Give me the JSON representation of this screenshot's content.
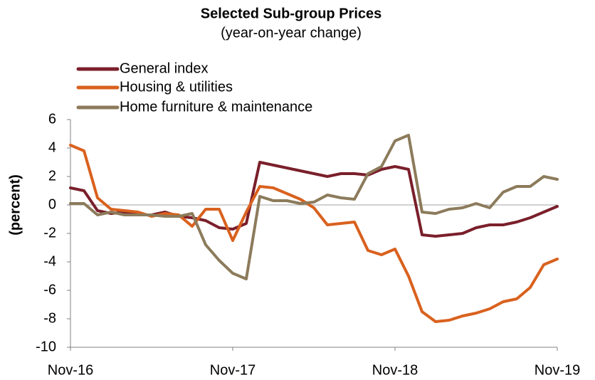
{
  "chart_data": {
    "type": "line",
    "title": "Selected Sub-group Prices",
    "subtitle": "(year-on-year change)",
    "y_label": "(percent)",
    "categories": [
      "Nov-16",
      null,
      null,
      null,
      null,
      null,
      null,
      null,
      null,
      null,
      null,
      null,
      "Nov-17",
      null,
      null,
      null,
      null,
      null,
      null,
      null,
      null,
      null,
      null,
      null,
      "Nov-18",
      null,
      null,
      null,
      null,
      null,
      null,
      null,
      null,
      null,
      null,
      null,
      "Nov-19"
    ],
    "series": [
      {
        "name": "General index",
        "color": "#7a1f2b",
        "values": [
          1.2,
          1.0,
          -0.4,
          -0.6,
          -0.5,
          -0.7,
          -0.7,
          -0.5,
          -0.8,
          -0.9,
          -1.1,
          -1.6,
          -1.7,
          -1.3,
          3.0,
          2.8,
          2.6,
          2.4,
          2.2,
          2.0,
          2.2,
          2.2,
          2.1,
          2.5,
          2.7,
          2.5,
          -2.1,
          -2.2,
          -2.1,
          -2.0,
          -1.6,
          -1.4,
          -1.4,
          -1.2,
          -0.9,
          -0.5,
          -0.1
        ]
      },
      {
        "name": "Housing & utilities",
        "color": "#d9611e",
        "values": [
          4.2,
          3.8,
          0.5,
          -0.3,
          -0.4,
          -0.5,
          -0.8,
          -0.6,
          -0.7,
          -1.5,
          -0.3,
          -0.3,
          -2.5,
          -0.5,
          1.3,
          1.2,
          0.8,
          0.4,
          -0.2,
          -1.4,
          -1.3,
          -1.2,
          -3.2,
          -3.5,
          -3.1,
          -5.0,
          -7.5,
          -8.2,
          -8.1,
          -7.8,
          -7.6,
          -7.3,
          -6.8,
          -6.6,
          -5.8,
          -4.2,
          -3.8
        ]
      },
      {
        "name": "Home furniture & maintenance",
        "color": "#8c7b5b",
        "values": [
          0.1,
          0.1,
          -0.7,
          -0.5,
          -0.7,
          -0.7,
          -0.7,
          -0.8,
          -0.8,
          -0.6,
          -2.8,
          -3.9,
          -4.8,
          -5.2,
          0.6,
          0.3,
          0.3,
          0.1,
          0.2,
          0.7,
          0.5,
          0.4,
          2.2,
          2.7,
          4.5,
          4.9,
          -0.5,
          -0.6,
          -0.3,
          -0.2,
          0.1,
          -0.2,
          0.9,
          1.3,
          1.3,
          2.0,
          1.8
        ]
      }
    ],
    "ylim": [
      -10,
      6
    ],
    "yticks": [
      -10,
      -8,
      -6,
      -4,
      -2,
      0,
      2,
      4,
      6
    ],
    "legend": "top-left"
  }
}
